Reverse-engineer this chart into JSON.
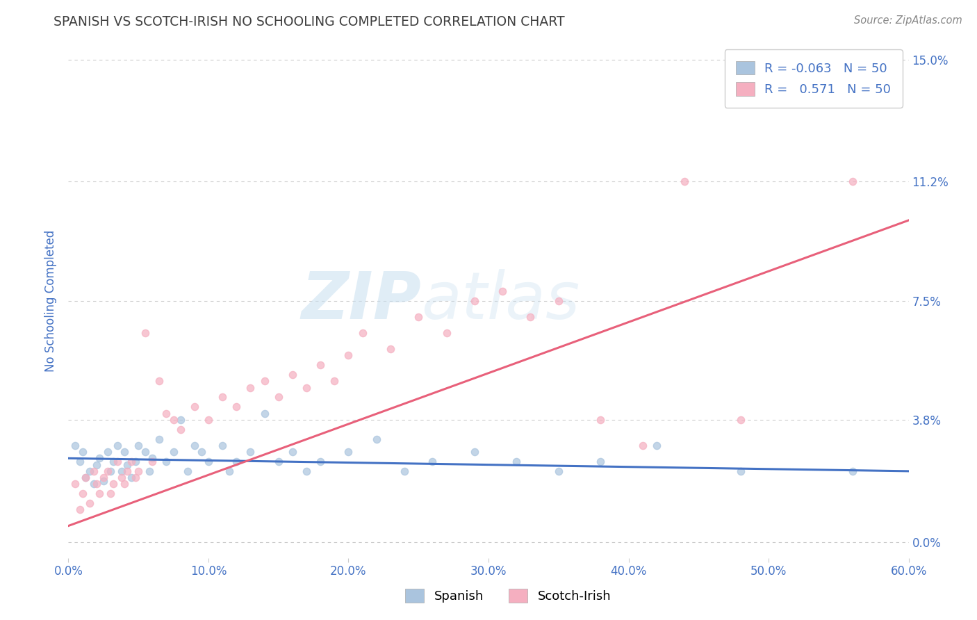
{
  "title": "SPANISH VS SCOTCH-IRISH NO SCHOOLING COMPLETED CORRELATION CHART",
  "source_text": "Source: ZipAtlas.com",
  "ylabel": "No Schooling Completed",
  "xlim": [
    0.0,
    0.6
  ],
  "ylim": [
    -0.005,
    0.155
  ],
  "xticks": [
    0.0,
    0.1,
    0.2,
    0.3,
    0.4,
    0.5,
    0.6
  ],
  "xticklabels": [
    "0.0%",
    "10.0%",
    "20.0%",
    "30.0%",
    "40.0%",
    "50.0%",
    "60.0%"
  ],
  "yticks": [
    0.0,
    0.038,
    0.075,
    0.112,
    0.15
  ],
  "yticklabels": [
    "0.0%",
    "3.8%",
    "7.5%",
    "11.2%",
    "15.0%"
  ],
  "spanish_R": -0.063,
  "spanish_N": 50,
  "scotch_R": 0.571,
  "scotch_N": 50,
  "spanish_color": "#aac4de",
  "scotch_color": "#f5afc0",
  "spanish_line_color": "#4472c4",
  "scotch_line_color": "#e8607a",
  "legend_label_1": "Spanish",
  "legend_label_2": "Scotch-Irish",
  "watermark_zip": "ZIP",
  "watermark_atlas": "atlas",
  "background_color": "#ffffff",
  "grid_color": "#cccccc",
  "title_color": "#404040",
  "axis_label_color": "#4472c4",
  "spanish_x": [
    0.005,
    0.008,
    0.01,
    0.012,
    0.015,
    0.018,
    0.02,
    0.022,
    0.025,
    0.028,
    0.03,
    0.032,
    0.035,
    0.038,
    0.04,
    0.042,
    0.045,
    0.048,
    0.05,
    0.055,
    0.058,
    0.06,
    0.065,
    0.07,
    0.075,
    0.08,
    0.085,
    0.09,
    0.095,
    0.1,
    0.11,
    0.115,
    0.12,
    0.13,
    0.14,
    0.15,
    0.16,
    0.17,
    0.18,
    0.2,
    0.22,
    0.24,
    0.26,
    0.29,
    0.32,
    0.35,
    0.38,
    0.42,
    0.48,
    0.56
  ],
  "spanish_y": [
    0.03,
    0.025,
    0.028,
    0.02,
    0.022,
    0.018,
    0.024,
    0.026,
    0.019,
    0.028,
    0.022,
    0.025,
    0.03,
    0.022,
    0.028,
    0.024,
    0.02,
    0.025,
    0.03,
    0.028,
    0.022,
    0.026,
    0.032,
    0.025,
    0.028,
    0.038,
    0.022,
    0.03,
    0.028,
    0.025,
    0.03,
    0.022,
    0.025,
    0.028,
    0.04,
    0.025,
    0.028,
    0.022,
    0.025,
    0.028,
    0.032,
    0.022,
    0.025,
    0.028,
    0.025,
    0.022,
    0.025,
    0.03,
    0.022,
    0.022
  ],
  "scotch_x": [
    0.005,
    0.008,
    0.01,
    0.012,
    0.015,
    0.018,
    0.02,
    0.022,
    0.025,
    0.028,
    0.03,
    0.032,
    0.035,
    0.038,
    0.04,
    0.042,
    0.045,
    0.048,
    0.05,
    0.055,
    0.06,
    0.065,
    0.07,
    0.075,
    0.08,
    0.09,
    0.1,
    0.11,
    0.12,
    0.13,
    0.14,
    0.15,
    0.16,
    0.17,
    0.18,
    0.19,
    0.2,
    0.21,
    0.23,
    0.25,
    0.27,
    0.29,
    0.31,
    0.33,
    0.35,
    0.38,
    0.41,
    0.44,
    0.48,
    0.56
  ],
  "scotch_y": [
    0.018,
    0.01,
    0.015,
    0.02,
    0.012,
    0.022,
    0.018,
    0.015,
    0.02,
    0.022,
    0.015,
    0.018,
    0.025,
    0.02,
    0.018,
    0.022,
    0.025,
    0.02,
    0.022,
    0.065,
    0.025,
    0.05,
    0.04,
    0.038,
    0.035,
    0.042,
    0.038,
    0.045,
    0.042,
    0.048,
    0.05,
    0.045,
    0.052,
    0.048,
    0.055,
    0.05,
    0.058,
    0.065,
    0.06,
    0.07,
    0.065,
    0.075,
    0.078,
    0.07,
    0.075,
    0.038,
    0.03,
    0.112,
    0.038,
    0.112
  ]
}
